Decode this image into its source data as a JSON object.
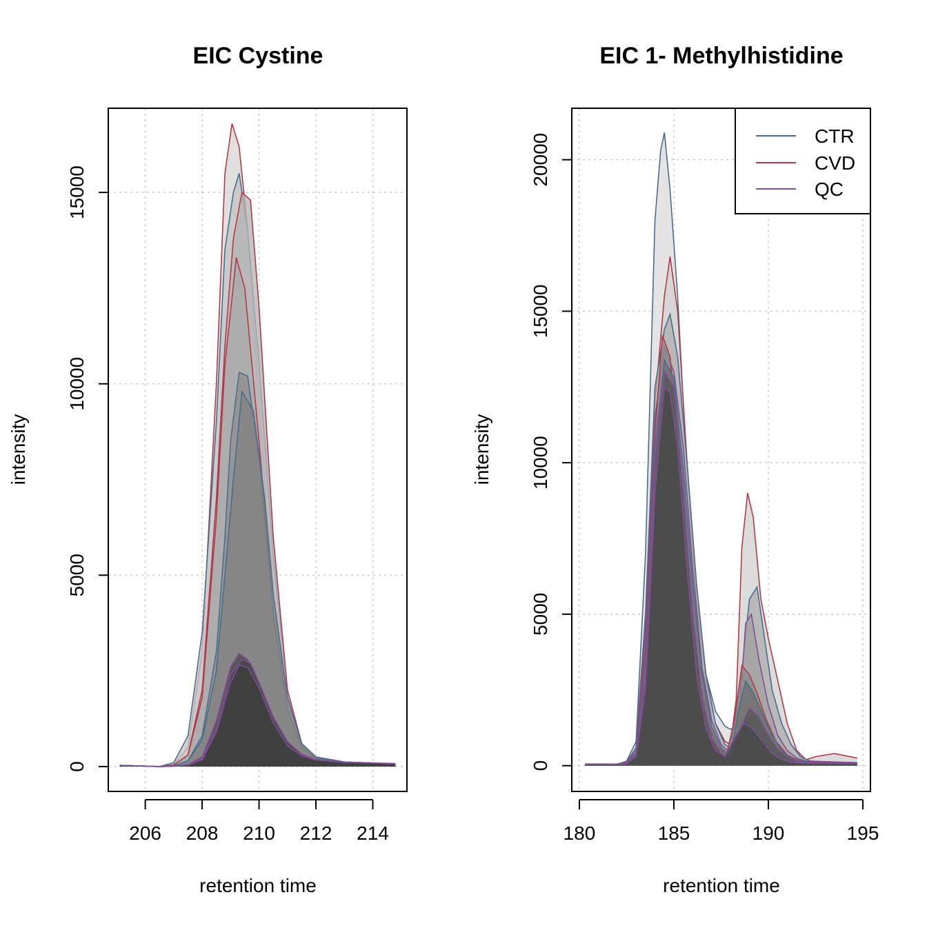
{
  "colors": {
    "CTR": "#4a6d8c",
    "CVD": "#b03a48",
    "QC": "#7e4f93",
    "grid": "#c8c8c8"
  },
  "chart_data": [
    {
      "type": "area",
      "title": "EIC Cystine",
      "xlabel": "retention time",
      "ylabel": "intensity",
      "xlim": [
        204.7,
        215.2
      ],
      "ylim": [
        -650,
        17200
      ],
      "xticks": [
        206,
        208,
        210,
        212,
        214
      ],
      "xtick_labels": [
        "206",
        "208",
        "210",
        "212",
        "214"
      ],
      "yticks": [
        0,
        5000,
        10000,
        15000
      ],
      "ytick_labels": [
        "0",
        "5000",
        "10000",
        "15000"
      ],
      "grid": true,
      "series": [
        {
          "group": "CVD",
          "fill": "#d6d6d6",
          "x": [
            205.1,
            206.5,
            207.0,
            207.5,
            208.0,
            208.5,
            208.8,
            209.05,
            209.3,
            209.6,
            210.0,
            210.5,
            211.0,
            211.5,
            212.0,
            213.0,
            214.8
          ],
          "y": [
            30,
            0,
            50,
            500,
            3000,
            10000,
            15500,
            16800,
            16200,
            14000,
            9500,
            4500,
            1500,
            500,
            220,
            120,
            70
          ]
        },
        {
          "group": "CTR",
          "fill": "#c4c4c4",
          "x": [
            205.1,
            206.5,
            207.0,
            207.5,
            208.0,
            208.5,
            208.8,
            209.1,
            209.3,
            209.6,
            210.0,
            210.5,
            211.0,
            211.5,
            212.0,
            213.0,
            214.8
          ],
          "y": [
            30,
            0,
            100,
            800,
            3500,
            9000,
            13500,
            15000,
            15500,
            14000,
            10500,
            5500,
            2000,
            600,
            250,
            120,
            70
          ]
        },
        {
          "group": "CVD",
          "fill": "#b5b5b5",
          "x": [
            205.1,
            206.5,
            207.0,
            207.5,
            208.0,
            208.5,
            208.8,
            209.1,
            209.4,
            209.7,
            210.0,
            210.5,
            211.0,
            211.5,
            212.0,
            213.0,
            214.8
          ],
          "y": [
            30,
            0,
            40,
            300,
            2000,
            7000,
            11000,
            13800,
            15000,
            14800,
            12000,
            6000,
            2000,
            600,
            250,
            120,
            70
          ]
        },
        {
          "group": "CVD",
          "fill": "#a9a9a9",
          "x": [
            205.1,
            206.5,
            207.0,
            207.5,
            208.0,
            208.5,
            208.8,
            209.2,
            209.5,
            210.0,
            210.5,
            211.0,
            211.5,
            212.0,
            213.0,
            214.8
          ],
          "y": [
            30,
            0,
            40,
            300,
            1800,
            6500,
            10500,
            13300,
            12500,
            8500,
            4000,
            1500,
            500,
            220,
            120,
            70
          ]
        },
        {
          "group": "CTR",
          "fill": "#8e8e8e",
          "x": [
            205.1,
            206.5,
            207.0,
            207.5,
            208.0,
            208.5,
            208.8,
            209.0,
            209.3,
            209.6,
            210.0,
            210.5,
            211.0,
            211.5,
            212.0,
            213.0,
            214.8
          ],
          "y": [
            30,
            0,
            20,
            150,
            800,
            3000,
            6000,
            8500,
            10300,
            10200,
            8000,
            4000,
            1500,
            500,
            220,
            120,
            70
          ]
        },
        {
          "group": "CTR",
          "fill": "#828282",
          "x": [
            205.1,
            206.5,
            207.0,
            207.5,
            208.0,
            208.5,
            208.8,
            209.1,
            209.4,
            209.8,
            210.2,
            210.5,
            211.0,
            211.5,
            212.0,
            213.0,
            214.8
          ],
          "y": [
            30,
            0,
            20,
            150,
            700,
            2500,
            5000,
            7500,
            9800,
            9300,
            7000,
            4500,
            1800,
            600,
            250,
            120,
            70
          ]
        },
        {
          "group": "QC",
          "fill": "#4a4a4a",
          "x": [
            205.1,
            206.5,
            207.0,
            207.5,
            208.0,
            208.5,
            209.0,
            209.3,
            209.6,
            210.0,
            210.5,
            211.0,
            211.5,
            212.0,
            213.0,
            214.8
          ],
          "y": [
            30,
            0,
            10,
            50,
            250,
            1200,
            2600,
            2950,
            2800,
            2100,
            1200,
            600,
            300,
            180,
            110,
            70
          ]
        },
        {
          "group": "QC",
          "fill": "#444444",
          "x": [
            205.1,
            206.5,
            207.0,
            207.5,
            208.0,
            208.5,
            209.0,
            209.4,
            209.7,
            210.0,
            210.5,
            211.0,
            211.5,
            212.0,
            213.0,
            214.8
          ],
          "y": [
            30,
            0,
            10,
            50,
            200,
            1000,
            2400,
            2800,
            2700,
            2200,
            1300,
            650,
            320,
            190,
            120,
            80
          ]
        },
        {
          "group": "QC",
          "fill": "#3e3e3e",
          "x": [
            205.1,
            206.5,
            207.0,
            207.5,
            208.0,
            208.5,
            209.0,
            209.3,
            209.6,
            210.0,
            210.5,
            211.0,
            211.5,
            212.0,
            213.0,
            214.8
          ],
          "y": [
            30,
            0,
            10,
            40,
            180,
            900,
            2200,
            2650,
            2600,
            2050,
            1150,
            550,
            280,
            170,
            110,
            70
          ]
        }
      ]
    },
    {
      "type": "area",
      "title": "EIC 1- Methylhistidine",
      "xlabel": "retention time",
      "ylabel": "intensity",
      "xlim": [
        179.6,
        195.4
      ],
      "ylim": [
        -850,
        21700
      ],
      "xticks": [
        180,
        185,
        190,
        195
      ],
      "xtick_labels": [
        "180",
        "185",
        "190",
        "195"
      ],
      "yticks": [
        0,
        5000,
        10000,
        15000,
        20000
      ],
      "ytick_labels": [
        "0",
        "5000",
        "10000",
        "15000",
        "20000"
      ],
      "grid": true,
      "legend": {
        "position": "top-right",
        "entries": [
          "CTR",
          "CVD",
          "QC"
        ]
      },
      "series": [
        {
          "group": "CTR",
          "fill": "#dcdcdc",
          "x": [
            180.3,
            182.0,
            182.5,
            183.0,
            183.5,
            184.0,
            184.3,
            184.5,
            184.8,
            185.2,
            185.7,
            186.2,
            186.7,
            187.2,
            187.7,
            188.0,
            188.5,
            189.0,
            189.5,
            190.0,
            190.5,
            191.0,
            191.5,
            192.0,
            192.5,
            193.0,
            194.7
          ],
          "y": [
            50,
            50,
            150,
            800,
            7000,
            18000,
            20300,
            20900,
            19000,
            15500,
            9500,
            5200,
            3000,
            1800,
            1300,
            1200,
            1400,
            1500,
            1300,
            1000,
            700,
            450,
            300,
            200,
            150,
            120,
            100
          ]
        },
        {
          "group": "CVD",
          "fill": "#d2d2d2",
          "x": [
            180.3,
            182.0,
            182.5,
            183.0,
            183.5,
            184.0,
            184.5,
            184.8,
            185.2,
            185.7,
            186.2,
            186.7,
            187.2,
            187.7,
            188.0,
            188.3,
            188.6,
            188.9,
            189.2,
            189.6,
            190.0,
            190.5,
            191.0,
            191.5,
            192.0,
            192.5,
            193.5,
            194.7
          ],
          "y": [
            50,
            50,
            120,
            600,
            5000,
            12000,
            15500,
            16800,
            15000,
            10000,
            5500,
            2800,
            1400,
            800,
            700,
            2200,
            7200,
            9000,
            8200,
            5500,
            4200,
            2800,
            1400,
            500,
            200,
            300,
            400,
            250
          ]
        },
        {
          "group": "CTR",
          "fill": "#b0b0b0",
          "x": [
            180.3,
            182.0,
            182.5,
            183.0,
            183.5,
            184.0,
            184.5,
            184.8,
            185.2,
            185.7,
            186.2,
            186.7,
            187.2,
            187.7,
            188.0,
            188.5,
            189.0,
            189.4,
            189.8,
            190.2,
            190.7,
            191.2,
            191.7,
            192.2,
            194.7
          ],
          "y": [
            50,
            50,
            100,
            600,
            5000,
            12500,
            14400,
            14900,
            13500,
            10000,
            6000,
            3000,
            1400,
            700,
            600,
            2500,
            5500,
            5900,
            4200,
            2500,
            1400,
            700,
            300,
            150,
            100
          ]
        },
        {
          "group": "QC",
          "fill": "#a0a0a0",
          "x": [
            180.3,
            182.0,
            182.5,
            183.0,
            183.5,
            184.0,
            184.5,
            185.0,
            185.5,
            186.0,
            186.5,
            187.0,
            187.5,
            188.0,
            188.5,
            188.8,
            189.1,
            189.5,
            190.0,
            190.5,
            191.0,
            191.5,
            192.0,
            194.7
          ],
          "y": [
            50,
            50,
            100,
            500,
            4500,
            11500,
            13800,
            13000,
            10500,
            6500,
            3200,
            1500,
            700,
            400,
            2000,
            4700,
            5000,
            3500,
            2000,
            1000,
            500,
            250,
            150,
            100
          ]
        },
        {
          "group": "CVD",
          "fill": "#8a8a8a",
          "x": [
            180.3,
            182.0,
            182.5,
            183.0,
            183.5,
            184.0,
            184.4,
            184.8,
            185.3,
            185.8,
            186.3,
            186.8,
            187.3,
            187.8,
            188.2,
            188.6,
            189.0,
            189.4,
            189.9,
            190.4,
            191.0,
            191.5,
            192.0,
            194.7
          ],
          "y": [
            50,
            50,
            80,
            400,
            4000,
            11000,
            14200,
            13500,
            10000,
            6000,
            3000,
            1400,
            600,
            400,
            1500,
            3300,
            3000,
            2400,
            1500,
            800,
            350,
            200,
            120,
            80
          ]
        },
        {
          "group": "CTR",
          "fill": "#6e6e6e",
          "x": [
            180.3,
            182.0,
            182.5,
            183.0,
            183.5,
            184.0,
            184.5,
            185.0,
            185.5,
            186.0,
            186.5,
            187.0,
            187.5,
            188.0,
            188.4,
            188.8,
            189.2,
            189.7,
            190.2,
            190.7,
            191.2,
            191.7,
            192.2,
            194.7
          ],
          "y": [
            50,
            50,
            80,
            400,
            3500,
            10500,
            13400,
            12800,
            9800,
            6000,
            3000,
            1300,
            600,
            300,
            1800,
            2800,
            2400,
            1700,
            1000,
            500,
            250,
            150,
            100,
            80
          ]
        },
        {
          "group": "QC",
          "fill": "#545454",
          "x": [
            180.3,
            182.0,
            182.5,
            183.0,
            183.5,
            184.0,
            184.5,
            185.0,
            185.5,
            186.0,
            186.5,
            187.0,
            187.5,
            188.0,
            188.5,
            189.0,
            189.5,
            190.0,
            190.5,
            191.0,
            191.5,
            192.0,
            194.7
          ],
          "y": [
            50,
            50,
            80,
            350,
            3000,
            10000,
            13000,
            12500,
            9000,
            5000,
            2200,
            900,
            400,
            250,
            1200,
            1900,
            1600,
            1000,
            550,
            300,
            150,
            100,
            80
          ]
        },
        {
          "group": "QC",
          "fill": "#484848",
          "x": [
            180.3,
            182.0,
            182.5,
            183.0,
            183.5,
            184.0,
            184.5,
            184.8,
            185.2,
            185.7,
            186.2,
            186.7,
            187.2,
            187.7,
            188.2,
            188.7,
            189.2,
            189.7,
            190.2,
            190.7,
            191.2,
            191.7,
            194.7
          ],
          "y": [
            50,
            50,
            60,
            300,
            2500,
            9000,
            12500,
            12300,
            10500,
            6500,
            3000,
            1200,
            500,
            300,
            900,
            1400,
            1200,
            800,
            400,
            200,
            120,
            90,
            70
          ]
        }
      ]
    }
  ]
}
